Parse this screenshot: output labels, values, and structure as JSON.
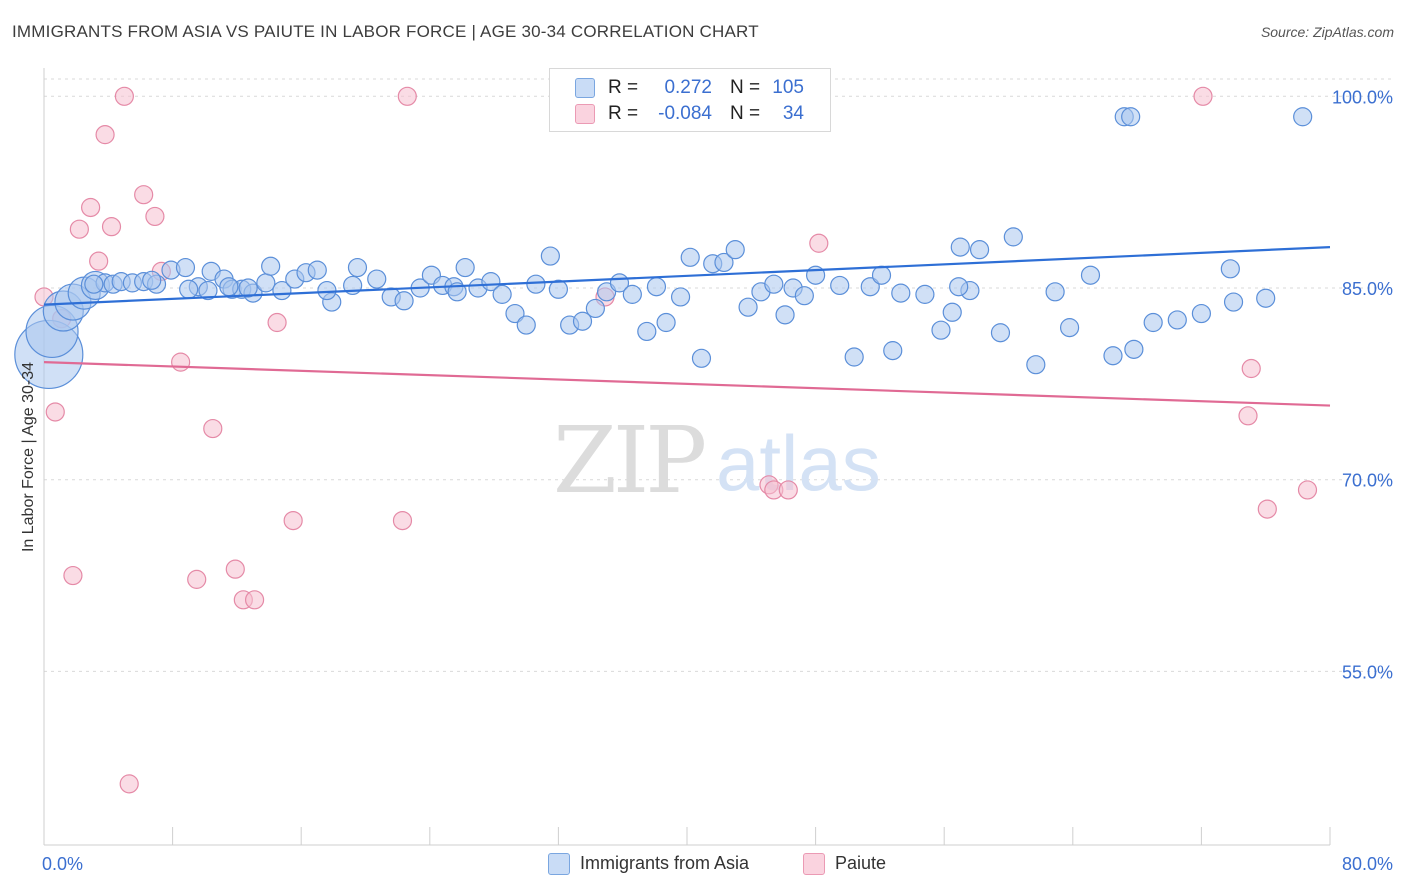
{
  "header": {
    "title": "IMMIGRANTS FROM ASIA VS PAIUTE IN LABOR FORCE | AGE 30-34 CORRELATION CHART",
    "source": "Source: ZipAtlas.com"
  },
  "watermark": {
    "zip": "ZIP",
    "atlas": "atlas"
  },
  "stats": [
    {
      "r_label": "R =",
      "r_value": "0.272",
      "n_label": "N =",
      "n_value": "105",
      "color": "#a9c6ef"
    },
    {
      "r_label": "R =",
      "r_value": "-0.084",
      "n_label": "N =",
      "n_value": "34",
      "color": "#f6bfd0"
    }
  ],
  "legend": [
    {
      "label": "Immigrants from Asia",
      "color": "#a9c6ef"
    },
    {
      "label": "Paiute",
      "color": "#f6bfd0"
    }
  ],
  "chart_data": {
    "type": "scatter",
    "title": "IMMIGRANTS FROM ASIA VS PAIUTE IN LABOR FORCE | AGE 30-34 CORRELATION CHART",
    "xlabel": "",
    "ylabel": "In Labor Force | Age 30-34",
    "xlim": [
      0,
      80
    ],
    "ylim": [
      42,
      102
    ],
    "x_tick_labels": [
      "0.0%",
      "80.0%"
    ],
    "y_tick_values": [
      55,
      70,
      85,
      100
    ],
    "y_tick_labels": [
      "55.0%",
      "70.0%",
      "85.0%",
      "100.0%"
    ],
    "grid": true,
    "legend_position": "bottom",
    "colors": {
      "asia_fill": "#a9c6ef",
      "asia_stroke": "#5b8fd9",
      "asia_line": "#2e6fd6",
      "paiute_fill": "#f6bfd0",
      "paiute_stroke": "#e58aa7",
      "paiute_line": "#e06a94",
      "tick_label": "#3b6fd0"
    },
    "series": [
      {
        "name": "Immigrants from Asia",
        "trend": {
          "x": [
            0,
            80
          ],
          "y": [
            83.7,
            88.2
          ]
        },
        "points": [
          [
            0.3,
            79.8
          ],
          [
            0.5,
            81.6
          ],
          [
            1.2,
            83.2
          ],
          [
            1.8,
            83.9
          ],
          [
            2.5,
            84.6
          ],
          [
            3.2,
            85.2
          ],
          [
            3.8,
            85.4
          ],
          [
            4.3,
            85.3
          ],
          [
            4.8,
            85.5
          ],
          [
            5.5,
            85.4
          ],
          [
            6.2,
            85.5
          ],
          [
            7.0,
            85.3
          ],
          [
            7.9,
            86.4
          ],
          [
            8.8,
            86.6
          ],
          [
            9.6,
            85.1
          ],
          [
            10.4,
            86.3
          ],
          [
            11.2,
            85.7
          ],
          [
            11.7,
            84.9
          ],
          [
            12.3,
            84.9
          ],
          [
            10.2,
            84.8
          ],
          [
            13.0,
            84.6
          ],
          [
            13.8,
            85.4
          ],
          [
            11.5,
            85.1
          ],
          [
            14.1,
            86.7
          ],
          [
            14.8,
            84.8
          ],
          [
            12.7,
            85.0
          ],
          [
            15.6,
            85.7
          ],
          [
            16.3,
            86.2
          ],
          [
            17.0,
            86.4
          ],
          [
            17.9,
            83.9
          ],
          [
            17.6,
            84.8
          ],
          [
            19.5,
            86.6
          ],
          [
            19.2,
            85.2
          ],
          [
            20.7,
            85.7
          ],
          [
            21.6,
            84.3
          ],
          [
            22.4,
            84.0
          ],
          [
            23.4,
            85.0
          ],
          [
            24.1,
            86.0
          ],
          [
            24.8,
            85.2
          ],
          [
            25.5,
            85.1
          ],
          [
            26.2,
            86.6
          ],
          [
            25.7,
            84.7
          ],
          [
            27.0,
            85.0
          ],
          [
            27.8,
            85.5
          ],
          [
            28.5,
            84.5
          ],
          [
            29.3,
            83.0
          ],
          [
            30.0,
            82.1
          ],
          [
            30.6,
            85.3
          ],
          [
            31.5,
            87.5
          ],
          [
            32.0,
            84.9
          ],
          [
            32.7,
            82.1
          ],
          [
            33.5,
            82.4
          ],
          [
            34.3,
            83.4
          ],
          [
            35.0,
            84.7
          ],
          [
            35.8,
            85.4
          ],
          [
            36.6,
            84.5
          ],
          [
            37.5,
            81.6
          ],
          [
            38.1,
            85.1
          ],
          [
            38.7,
            82.3
          ],
          [
            39.6,
            84.3
          ],
          [
            40.2,
            87.4
          ],
          [
            40.9,
            79.5
          ],
          [
            41.6,
            86.9
          ],
          [
            42.3,
            87.0
          ],
          [
            43.0,
            88.0
          ],
          [
            43.8,
            83.5
          ],
          [
            44.6,
            84.7
          ],
          [
            45.4,
            85.3
          ],
          [
            46.1,
            82.9
          ],
          [
            46.6,
            85.0
          ],
          [
            47.3,
            84.4
          ],
          [
            48.0,
            86.0
          ],
          [
            49.5,
            85.2
          ],
          [
            50.4,
            79.6
          ],
          [
            51.4,
            85.1
          ],
          [
            52.1,
            86.0
          ],
          [
            52.8,
            80.1
          ],
          [
            53.3,
            84.6
          ],
          [
            54.8,
            84.5
          ],
          [
            55.8,
            81.7
          ],
          [
            56.5,
            83.1
          ],
          [
            57.6,
            84.8
          ],
          [
            58.2,
            88.0
          ],
          [
            59.5,
            81.5
          ],
          [
            60.3,
            89.0
          ],
          [
            61.7,
            79.0
          ],
          [
            62.9,
            84.7
          ],
          [
            63.8,
            81.9
          ],
          [
            65.1,
            86.0
          ],
          [
            66.5,
            79.7
          ],
          [
            67.8,
            80.2
          ],
          [
            69.0,
            82.3
          ],
          [
            70.5,
            82.5
          ],
          [
            72.0,
            83.0
          ],
          [
            74.0,
            83.9
          ],
          [
            76.0,
            84.2
          ],
          [
            56.9,
            85.1
          ],
          [
            57.0,
            88.2
          ],
          [
            67.2,
            98.4
          ],
          [
            67.6,
            98.4
          ],
          [
            78.3,
            98.4
          ],
          [
            73.8,
            86.5
          ],
          [
            6.7,
            85.6
          ],
          [
            9.0,
            84.9
          ],
          [
            3.1,
            85.3
          ]
        ],
        "sizes": [
          [
            0,
            34
          ],
          [
            1,
            26
          ],
          [
            2,
            20
          ],
          [
            3,
            18
          ],
          [
            4,
            16
          ],
          [
            5,
            14
          ]
        ]
      },
      {
        "name": "Paiute",
        "trend": {
          "x": [
            0,
            80
          ],
          "y": [
            79.2,
            75.8
          ]
        },
        "points": [
          [
            0.0,
            84.3
          ],
          [
            0.7,
            75.3
          ],
          [
            1.1,
            82.6
          ],
          [
            1.8,
            62.5
          ],
          [
            2.2,
            89.6
          ],
          [
            2.9,
            91.3
          ],
          [
            3.4,
            87.1
          ],
          [
            3.8,
            97.0
          ],
          [
            4.2,
            89.8
          ],
          [
            5.0,
            100.0
          ],
          [
            5.3,
            46.2
          ],
          [
            6.2,
            92.3
          ],
          [
            6.9,
            90.6
          ],
          [
            7.3,
            86.3
          ],
          [
            8.5,
            79.2
          ],
          [
            9.5,
            62.2
          ],
          [
            10.5,
            74.0
          ],
          [
            11.9,
            63.0
          ],
          [
            12.4,
            60.6
          ],
          [
            13.1,
            60.6
          ],
          [
            14.5,
            82.3
          ],
          [
            15.5,
            66.8
          ],
          [
            22.3,
            66.8
          ],
          [
            22.6,
            100.0
          ],
          [
            34.9,
            84.3
          ],
          [
            45.1,
            69.6
          ],
          [
            45.4,
            69.2
          ],
          [
            46.3,
            69.2
          ],
          [
            48.2,
            88.5
          ],
          [
            72.1,
            100.0
          ],
          [
            75.1,
            78.7
          ],
          [
            74.9,
            75.0
          ],
          [
            76.1,
            67.7
          ],
          [
            78.6,
            69.2
          ]
        ]
      }
    ]
  }
}
